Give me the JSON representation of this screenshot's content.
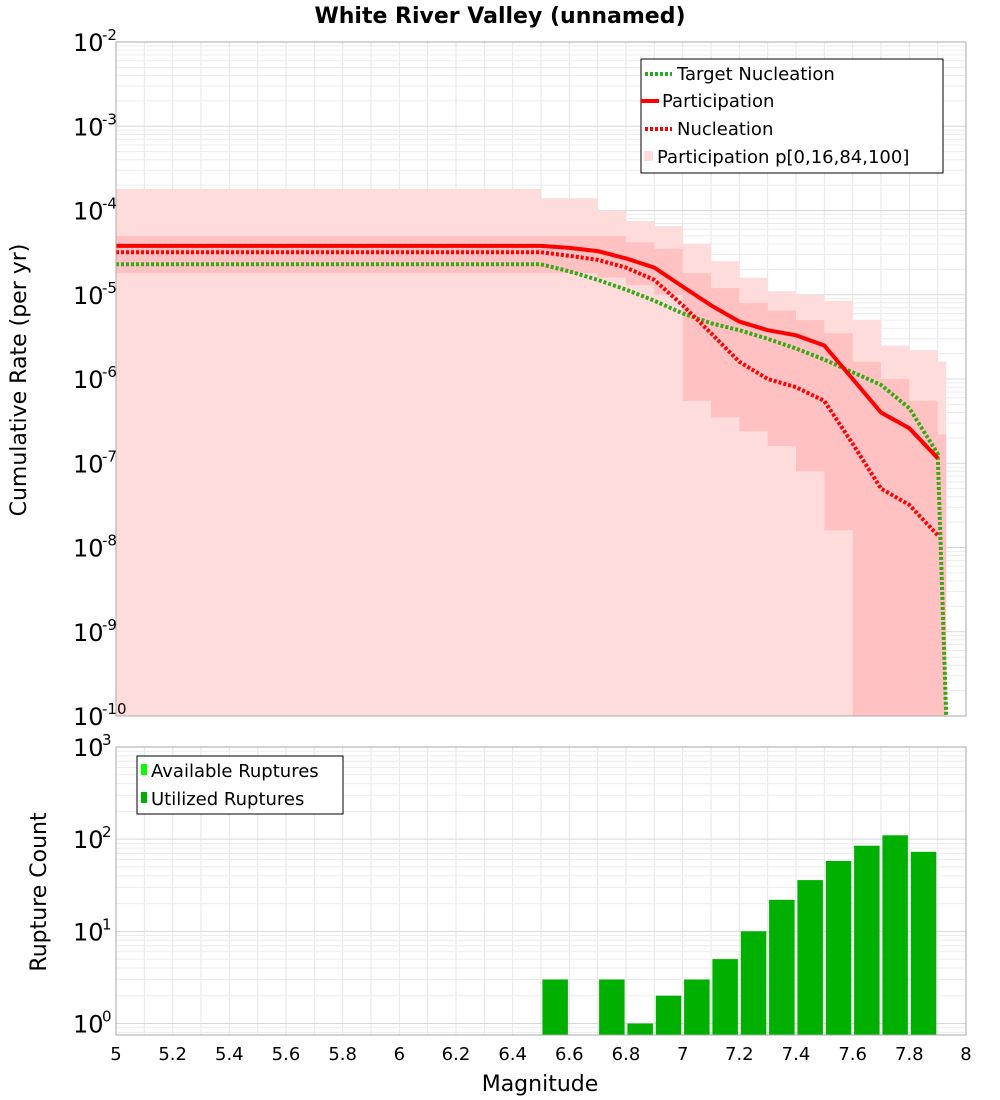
{
  "chart_data": [
    {
      "type": "line",
      "title": "White River Valley (unnamed)",
      "xlabel": "",
      "ylabel": "Cumulative Rate (per yr)",
      "xlim": [
        5,
        8
      ],
      "ylim": [
        1e-10,
        0.01
      ],
      "y_scale": "log",
      "y_tick_exponents": [
        "-2",
        "-3",
        "-4",
        "-5",
        "-6",
        "-7",
        "-8",
        "-9",
        "-10"
      ],
      "grid": true,
      "legend_position": "top-right",
      "legend": [
        {
          "label": "Target Nucleation",
          "style": "dotted",
          "color": "#22aa22"
        },
        {
          "label": "Participation",
          "style": "solid",
          "color": "#ff0000"
        },
        {
          "label": "Nucleation",
          "style": "dotted",
          "color": "#ff0000"
        },
        {
          "label": "Participation p[0,16,84,100]",
          "style": "box",
          "color": "#ffdcdc"
        }
      ],
      "x": [
        5.0,
        5.1,
        5.2,
        5.3,
        5.4,
        5.5,
        5.6,
        5.7,
        5.8,
        5.9,
        6.0,
        6.1,
        6.2,
        6.3,
        6.4,
        6.5,
        6.6,
        6.7,
        6.8,
        6.9,
        7.0,
        7.1,
        7.2,
        7.3,
        7.4,
        7.5,
        7.6,
        7.7,
        7.8,
        7.9
      ],
      "series": [
        {
          "name": "Target Nucleation",
          "color": "#33aa11",
          "style": "dotted",
          "x": [
            5.0,
            5.1,
            5.2,
            5.3,
            5.4,
            5.5,
            5.6,
            5.7,
            5.8,
            5.9,
            6.0,
            6.1,
            6.2,
            6.3,
            6.4,
            6.5,
            6.6,
            6.7,
            6.8,
            6.9,
            7.0,
            7.1,
            7.2,
            7.3,
            7.4,
            7.5,
            7.6,
            7.7,
            7.8,
            7.9,
            7.93
          ],
          "values": [
            2.3e-05,
            2.3e-05,
            2.3e-05,
            2.3e-05,
            2.3e-05,
            2.3e-05,
            2.3e-05,
            2.3e-05,
            2.3e-05,
            2.3e-05,
            2.3e-05,
            2.3e-05,
            2.3e-05,
            2.3e-05,
            2.3e-05,
            2.3e-05,
            1.9e-05,
            1.5e-05,
            1.15e-05,
            8.5e-06,
            6e-06,
            4.6e-06,
            3.8e-06,
            3e-06,
            2.3e-06,
            1.7e-06,
            1.2e-06,
            8.5e-07,
            4.5e-07,
            1.3e-07,
            1e-10
          ]
        },
        {
          "name": "Participation",
          "color": "#ff0000",
          "style": "solid",
          "values": [
            3.8e-05,
            3.8e-05,
            3.8e-05,
            3.8e-05,
            3.8e-05,
            3.8e-05,
            3.8e-05,
            3.8e-05,
            3.8e-05,
            3.8e-05,
            3.8e-05,
            3.8e-05,
            3.8e-05,
            3.8e-05,
            3.8e-05,
            3.8e-05,
            3.6e-05,
            3.3e-05,
            2.7e-05,
            2.1e-05,
            1.25e-05,
            7.5e-06,
            4.8e-06,
            3.8e-06,
            3.3e-06,
            2.5e-06,
            1e-06,
            4e-07,
            2.6e-07,
            1.15e-07
          ]
        },
        {
          "name": "Nucleation",
          "color": "#ff0000",
          "style": "dotted",
          "values": [
            3.2e-05,
            3.2e-05,
            3.2e-05,
            3.2e-05,
            3.2e-05,
            3.2e-05,
            3.2e-05,
            3.2e-05,
            3.2e-05,
            3.2e-05,
            3.2e-05,
            3.2e-05,
            3.2e-05,
            3.2e-05,
            3.2e-05,
            3.2e-05,
            2.9e-05,
            2.6e-05,
            2.1e-05,
            1.5e-05,
            7.5e-06,
            3.5e-06,
            1.6e-06,
            1e-06,
            8e-07,
            5.5e-07,
            1.7e-07,
            5e-08,
            3.2e-08,
            1.4e-08
          ]
        }
      ],
      "bands": [
        {
          "name": "Participation p[0,100]",
          "color": "#ffdcdc",
          "upper": [
            0.00018,
            0.00018,
            0.00018,
            0.00018,
            0.00018,
            0.00018,
            0.00018,
            0.00018,
            0.00018,
            0.00018,
            0.00018,
            0.00018,
            0.00018,
            0.00018,
            0.00018,
            0.00014,
            0.00014,
            0.0001,
            7.5e-05,
            6.5e-05,
            4e-05,
            2.5e-05,
            1.6e-05,
            1.1e-05,
            1e-05,
            8.5e-06,
            5e-06,
            2.5e-06,
            2.2e-06,
            1.6e-06
          ],
          "lower": [
            1e-10,
            1e-10,
            1e-10,
            1e-10,
            1e-10,
            1e-10,
            1e-10,
            1e-10,
            1e-10,
            1e-10,
            1e-10,
            1e-10,
            1e-10,
            1e-10,
            1e-10,
            1e-10,
            1e-10,
            1e-10,
            1e-10,
            1e-10,
            1e-10,
            1e-10,
            1e-10,
            1e-10,
            1e-10,
            1e-10,
            1e-10,
            1e-10,
            1e-10,
            1e-10
          ]
        },
        {
          "name": "Participation p[16,84]",
          "color": "#ffbcbc",
          "upper": [
            5e-05,
            5e-05,
            5e-05,
            5e-05,
            5e-05,
            5e-05,
            5e-05,
            5e-05,
            5e-05,
            5e-05,
            5e-05,
            5e-05,
            5e-05,
            5e-05,
            5e-05,
            5e-05,
            5e-05,
            5e-05,
            4.2e-05,
            3.5e-05,
            1.8e-05,
            1.2e-05,
            8e-06,
            6.5e-06,
            5e-06,
            3.5e-06,
            1.6e-06,
            1e-06,
            5.5e-07,
            2.2e-07
          ],
          "lower": [
            1.8e-05,
            1.8e-05,
            1.8e-05,
            1.8e-05,
            1.8e-05,
            1.8e-05,
            1.8e-05,
            1.8e-05,
            1.8e-05,
            1.8e-05,
            1.8e-05,
            1.8e-05,
            1.8e-05,
            1.8e-05,
            1.8e-05,
            1.8e-05,
            1.8e-05,
            1.6e-05,
            1.3e-05,
            1e-05,
            5.5e-07,
            3.5e-07,
            2.4e-07,
            1.6e-07,
            8e-08,
            1.6e-08,
            1e-10,
            1e-10,
            1e-10,
            1e-10
          ]
        }
      ]
    },
    {
      "type": "bar",
      "title": "",
      "xlabel": "Magnitude",
      "ylabel": "Rupture Count",
      "xlim": [
        5,
        8
      ],
      "ylim": [
        0.75,
        1000
      ],
      "y_scale": "log",
      "y_tick_exponents": [
        "3",
        "2",
        "1",
        "0"
      ],
      "x_ticks": [
        "5",
        "5.2",
        "5.4",
        "5.6",
        "5.8",
        "6",
        "6.2",
        "6.4",
        "6.6",
        "6.8",
        "7",
        "7.2",
        "7.4",
        "7.6",
        "7.8",
        "8"
      ],
      "grid": true,
      "legend_position": "top-left",
      "legend": [
        {
          "label": "Available Ruptures",
          "color": "#00ff00"
        },
        {
          "label": "Utilized Ruptures",
          "color": "#00b000"
        }
      ],
      "series": [
        {
          "name": "Utilized Ruptures",
          "color": "#00b000",
          "x": [
            6.55,
            6.75,
            6.85,
            6.95,
            7.05,
            7.15,
            7.25,
            7.35,
            7.45,
            7.55,
            7.65,
            7.75,
            7.85
          ],
          "values": [
            3,
            3,
            1,
            2,
            3,
            5,
            10,
            22,
            36,
            58,
            85,
            110,
            73
          ]
        }
      ]
    }
  ]
}
